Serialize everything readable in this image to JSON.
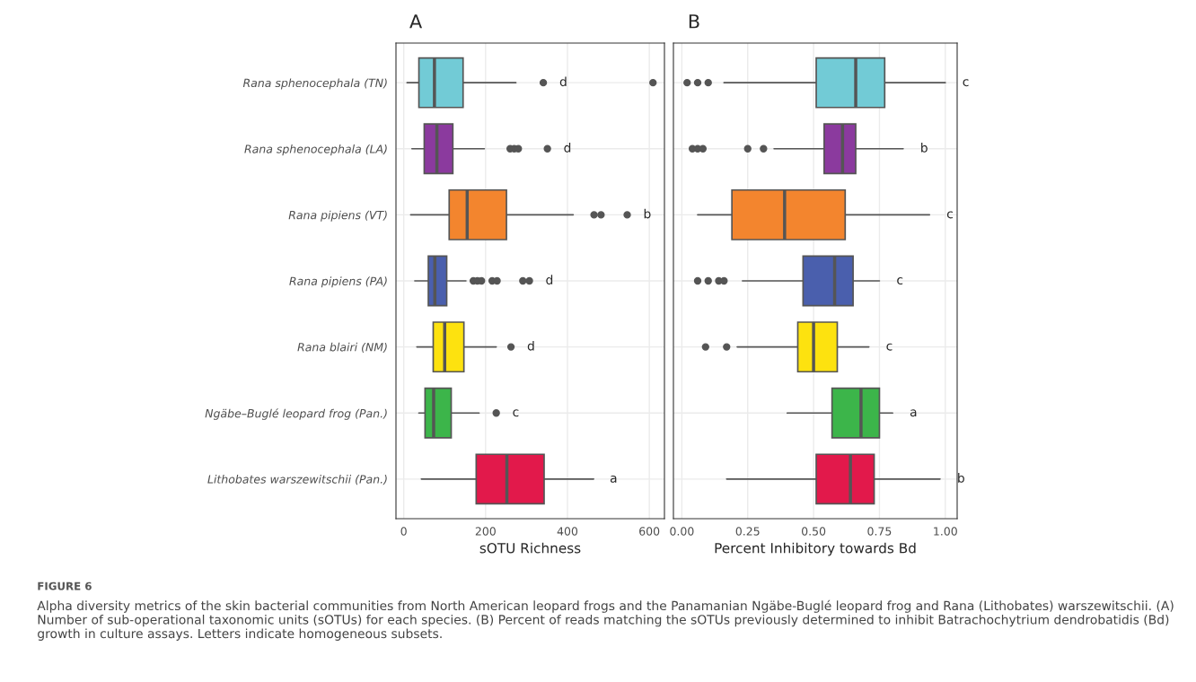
{
  "chart_data": [
    {
      "type": "box",
      "title": "A",
      "xlabel": "sOTU Richness",
      "orientation": "horizontal",
      "tick_labels": "xy",
      "grid": true,
      "categories": [
        "Rana sphenocephala (TN)",
        "Rana sphenocephala (LA)",
        "Rana pipiens (VT)",
        "Rana pipiens (PA)",
        "Rana blairi (NM)",
        "Ngäbe–Buglé leopard frog (Pan.)",
        "Lithobates warszewitschii (Pan.)"
      ],
      "colors": [
        "#72cbd6",
        "#8b3a9e",
        "#f3852e",
        "#4a5fad",
        "#fde20f",
        "#3cb54a",
        "#e2194b"
      ],
      "boxes": [
        {
          "low": 8,
          "q1": 37,
          "median": 75,
          "q3": 145,
          "high": 274,
          "outliers": [
            341,
            609
          ]
        },
        {
          "low": 20,
          "q1": 50,
          "median": 81,
          "q3": 120,
          "high": 197,
          "outliers": [
            260,
            270,
            280,
            351
          ]
        },
        {
          "low": 17,
          "q1": 111,
          "median": 155,
          "q3": 251,
          "high": 414,
          "outliers": [
            465,
            482,
            546
          ]
        },
        {
          "low": 27,
          "q1": 60,
          "median": 76,
          "q3": 105,
          "high": 152,
          "outliers": [
            170,
            180,
            190,
            216,
            228,
            291,
            307
          ]
        },
        {
          "low": 32,
          "q1": 72,
          "median": 100,
          "q3": 147,
          "high": 226,
          "outliers": [
            262
          ]
        },
        {
          "low": 37,
          "q1": 52,
          "median": 73,
          "q3": 116,
          "high": 184,
          "outliers": [
            226
          ]
        },
        {
          "low": 43,
          "q1": 177,
          "median": 252,
          "q3": 343,
          "high": 464
        }
      ],
      "xlim": [
        -19,
        637
      ],
      "xticks": [
        0,
        200,
        400,
        600
      ],
      "annotations": [
        "d",
        "d",
        "b",
        "d",
        "d",
        "c",
        "a",
        "FIGURE 6",
        "Alpha diversity metrics of the skin bacterial communities from North American leopard frogs and the Panamanian Ngäbe-Buglé leopard frog and Rana (Lithobates) warszewitschii. (A) Number of sub-operational taxonomic units (sOTUs) for each species. (B) Percent of reads matching the sOTUs previously determined to inhibit Batrachochytrium dendrobatidis (Bd) growth in culture assays. Letters indicate homogeneous subsets."
      ]
    },
    {
      "type": "box",
      "title": "B",
      "xlabel": "Percent Inhibitory towards Bd",
      "orientation": "horizontal",
      "tick_labels": "x",
      "grid": true,
      "categories": [
        null,
        null,
        null,
        null,
        null,
        null,
        null
      ],
      "colors": [
        "#72cbd6",
        "#8b3a9e",
        "#f3852e",
        "#4a5fad",
        "#fde20f",
        "#3cb54a",
        "#e2194b"
      ],
      "boxes": [
        {
          "low": 0.16,
          "q1": 0.51,
          "median": 0.66,
          "q3": 0.77,
          "high": 1.0,
          "outliers": [
            0.02,
            0.06,
            0.1
          ]
        },
        {
          "low": 0.35,
          "q1": 0.54,
          "median": 0.61,
          "q3": 0.66,
          "high": 0.84,
          "outliers": [
            0.04,
            0.06,
            0.08,
            0.25,
            0.31
          ]
        },
        {
          "low": 0.06,
          "q1": 0.19,
          "median": 0.39,
          "q3": 0.62,
          "high": 0.94
        },
        {
          "low": 0.23,
          "q1": 0.46,
          "median": 0.58,
          "q3": 0.65,
          "high": 0.75,
          "outliers": [
            0.06,
            0.1,
            0.14,
            0.16
          ]
        },
        {
          "low": 0.21,
          "q1": 0.44,
          "median": 0.5,
          "q3": 0.59,
          "high": 0.71,
          "outliers": [
            0.09,
            0.17
          ]
        },
        {
          "low": 0.4,
          "q1": 0.57,
          "median": 0.68,
          "q3": 0.75,
          "high": 0.8
        },
        {
          "low": 0.17,
          "q1": 0.51,
          "median": 0.64,
          "q3": 0.73,
          "high": 0.98
        }
      ],
      "xlim": [
        -0.032,
        1.045
      ],
      "xticks": [
        {
          "value": 0,
          "label": "0.00"
        },
        {
          "value": 0.25,
          "label": "0.25"
        },
        {
          "value": 0.5,
          "label": "0.50"
        },
        {
          "value": 0.75,
          "label": "0.75"
        },
        {
          "value": 1,
          "label": "1.00"
        }
      ],
      "annotations": [
        "c",
        "b",
        "c",
        "c",
        "c",
        "a",
        "b"
      ]
    }
  ]
}
